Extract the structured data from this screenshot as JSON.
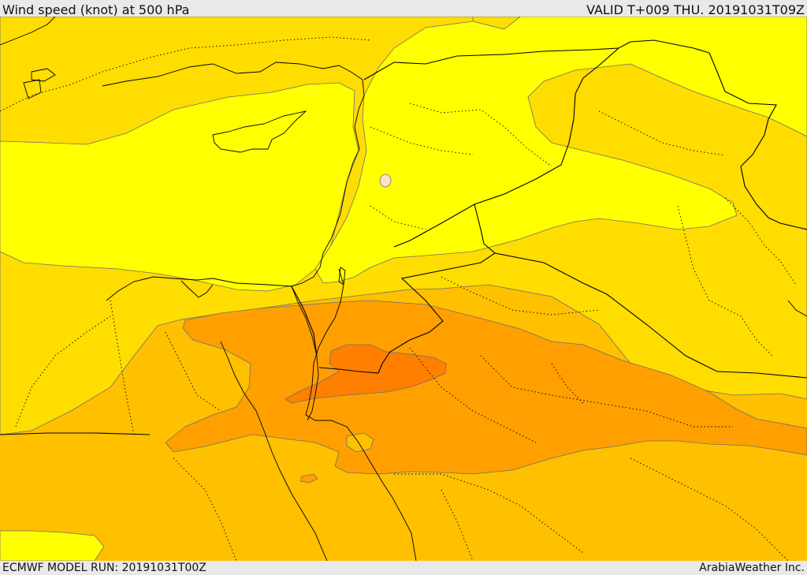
{
  "header": {
    "title": "Wind speed (knot) at 500 hPa",
    "valid": "VALID T+009 THU. 20191031T09Z"
  },
  "footer": {
    "model_run": "ECMWF MODEL RUN: 20191031T00Z",
    "credit": "ArabiaWeather Inc."
  },
  "colors": {
    "band_1": "#ffff00",
    "band_2": "#ffdd00",
    "band_3": "#ffc000",
    "band_4": "#ffa000",
    "band_5": "#ff8000",
    "small_cell": "#fbe3c8",
    "border": "#000000"
  }
}
